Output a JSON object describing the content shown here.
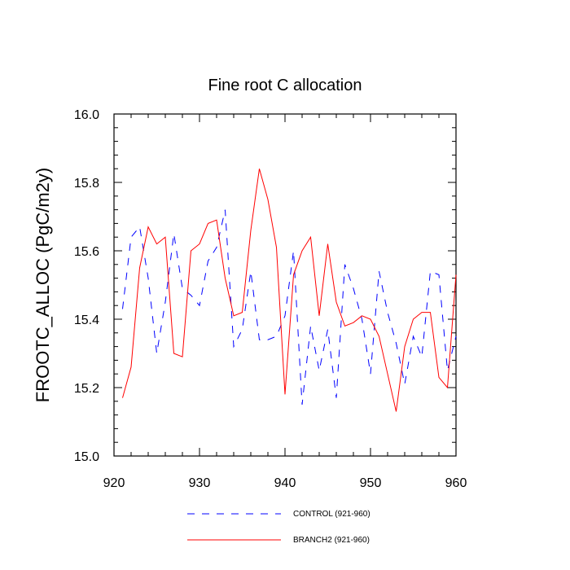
{
  "chart_data": {
    "type": "line",
    "title": "Fine root C allocation",
    "xlabel": "",
    "ylabel": "FROOTC_ALLOC  (PgC/m2y)",
    "xlim": [
      920,
      960
    ],
    "ylim": [
      15.0,
      16.0
    ],
    "xticks": [
      "920",
      "930",
      "940",
      "950",
      "960"
    ],
    "yticks": [
      "15.0",
      "15.2",
      "15.4",
      "15.6",
      "15.8",
      "16.0"
    ],
    "grid": false,
    "legend_position": "bottom",
    "x": [
      921,
      922,
      923,
      924,
      925,
      926,
      927,
      928,
      929,
      930,
      931,
      932,
      933,
      934,
      935,
      936,
      937,
      938,
      939,
      940,
      941,
      942,
      943,
      944,
      945,
      946,
      947,
      948,
      949,
      950,
      951,
      952,
      953,
      954,
      955,
      956,
      957,
      958,
      959,
      960
    ],
    "series": [
      {
        "name": "CONTROL (921-960)",
        "color": "#0000ff",
        "dash": "dashed",
        "values": [
          15.43,
          15.64,
          15.67,
          15.52,
          15.3,
          15.45,
          15.65,
          15.49,
          15.47,
          15.44,
          15.57,
          15.61,
          15.72,
          15.32,
          15.37,
          15.54,
          15.34,
          15.34,
          15.35,
          15.41,
          15.6,
          15.15,
          15.38,
          15.25,
          15.37,
          15.17,
          15.56,
          15.49,
          15.4,
          15.24,
          15.54,
          15.42,
          15.33,
          15.21,
          15.35,
          15.29,
          15.54,
          15.53,
          15.25,
          15.35
        ]
      },
      {
        "name": "BRANCH2 (921-960)",
        "color": "#ff0000",
        "dash": "solid",
        "values": [
          15.17,
          15.26,
          15.55,
          15.67,
          15.62,
          15.64,
          15.3,
          15.29,
          15.6,
          15.62,
          15.68,
          15.69,
          15.52,
          15.41,
          15.42,
          15.66,
          15.84,
          15.75,
          15.61,
          15.18,
          15.53,
          15.6,
          15.64,
          15.41,
          15.62,
          15.45,
          15.38,
          15.39,
          15.41,
          15.4,
          15.35,
          15.24,
          15.13,
          15.32,
          15.4,
          15.42,
          15.42,
          15.23,
          15.2,
          15.53
        ]
      }
    ]
  }
}
